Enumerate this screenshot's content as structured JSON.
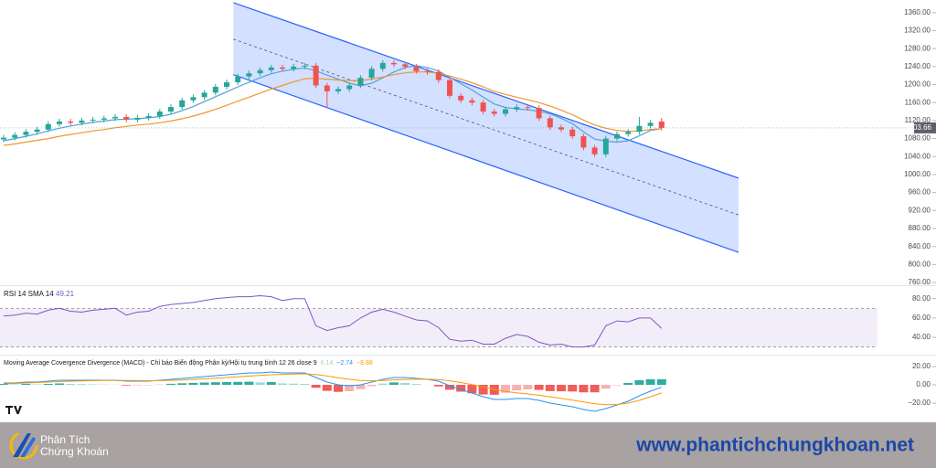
{
  "chart_data": [
    {
      "type": "candlestick",
      "open": [
        1078,
        1082,
        1088,
        1095,
        1100,
        1112,
        1118,
        1115,
        1120,
        1122,
        1125,
        1128,
        1122,
        1126,
        1130,
        1140,
        1150,
        1165,
        1172,
        1182,
        1195,
        1205,
        1218,
        1225,
        1232,
        1238,
        1235,
        1240,
        1242,
        1198,
        1185,
        1190,
        1198,
        1215,
        1235,
        1248,
        1245,
        1240,
        1230,
        1228,
        1210,
        1175,
        1165,
        1160,
        1140,
        1135,
        1145,
        1150,
        1148,
        1125,
        1105,
        1100,
        1085,
        1060,
        1045,
        1080,
        1090,
        1095,
        1108,
        1118
      ],
      "high": [
        1088,
        1094,
        1101,
        1106,
        1118,
        1124,
        1124,
        1126,
        1128,
        1131,
        1134,
        1134,
        1132,
        1136,
        1146,
        1156,
        1171,
        1178,
        1188,
        1201,
        1211,
        1224,
        1231,
        1238,
        1244,
        1244,
        1246,
        1248,
        1248,
        1204,
        1196,
        1204,
        1221,
        1241,
        1254,
        1254,
        1251,
        1246,
        1236,
        1234,
        1216,
        1181,
        1171,
        1166,
        1146,
        1151,
        1156,
        1156,
        1154,
        1131,
        1111,
        1106,
        1091,
        1066,
        1086,
        1096,
        1101,
        1128,
        1121,
        1126
      ],
      "low": [
        1072,
        1076,
        1082,
        1089,
        1094,
        1106,
        1109,
        1109,
        1114,
        1116,
        1119,
        1116,
        1116,
        1120,
        1124,
        1134,
        1144,
        1159,
        1166,
        1176,
        1189,
        1199,
        1212,
        1219,
        1226,
        1229,
        1229,
        1234,
        1192,
        1150,
        1179,
        1184,
        1192,
        1209,
        1229,
        1239,
        1234,
        1224,
        1222,
        1204,
        1169,
        1159,
        1154,
        1134,
        1129,
        1129,
        1139,
        1142,
        1119,
        1099,
        1094,
        1079,
        1054,
        1039,
        1039,
        1074,
        1084,
        1089,
        1102,
        1098
      ],
      "close": [
        1082,
        1088,
        1095,
        1100,
        1112,
        1118,
        1115,
        1120,
        1122,
        1125,
        1128,
        1122,
        1126,
        1130,
        1140,
        1150,
        1165,
        1172,
        1182,
        1195,
        1205,
        1218,
        1225,
        1232,
        1238,
        1235,
        1240,
        1242,
        1198,
        1185,
        1190,
        1198,
        1215,
        1235,
        1248,
        1245,
        1240,
        1230,
        1228,
        1210,
        1175,
        1165,
        1160,
        1140,
        1135,
        1145,
        1150,
        1148,
        1125,
        1105,
        1100,
        1085,
        1060,
        1045,
        1080,
        1090,
        1095,
        1108,
        1115,
        1103.66
      ],
      "up_color": "#26a69a",
      "down_color": "#ef5350",
      "overlays": [
        {
          "color": "#4fa3d9",
          "values": [
            1075,
            1080,
            1085,
            1090,
            1097,
            1103,
            1108,
            1112,
            1116,
            1119,
            1122,
            1123,
            1124,
            1126,
            1129,
            1134,
            1142,
            1151,
            1162,
            1173,
            1184,
            1195,
            1205,
            1215,
            1224,
            1230,
            1234,
            1237,
            1231,
            1221,
            1212,
            1203,
            1197,
            1203,
            1215,
            1228,
            1238,
            1242,
            1238,
            1230,
            1216,
            1202,
            1188,
            1172,
            1157,
            1149,
            1146,
            1144,
            1141,
            1135,
            1125,
            1113,
            1095,
            1079,
            1074,
            1072,
            1075,
            1086,
            1098,
            1102
          ]
        },
        {
          "color": "#f0962e",
          "values": [
            1065,
            1068,
            1072,
            1076,
            1080,
            1085,
            1089,
            1093,
            1097,
            1100,
            1104,
            1107,
            1110,
            1112,
            1115,
            1119,
            1124,
            1130,
            1137,
            1145,
            1154,
            1163,
            1172,
            1181,
            1190,
            1198,
            1206,
            1213,
            1214,
            1212,
            1210,
            1209,
            1209,
            1212,
            1217,
            1222,
            1226,
            1228,
            1228,
            1225,
            1219,
            1212,
            1204,
            1195,
            1185,
            1178,
            1172,
            1166,
            1160,
            1152,
            1143,
            1133,
            1121,
            1110,
            1103,
            1098,
            1096,
            1097,
            1100,
            1102
          ]
        }
      ],
      "channel": {
        "start_index": 20.6,
        "end_index": 65.9,
        "upper": [
          1382,
          992
        ],
        "middle": [
          1301,
          910
        ],
        "lower": [
          1222,
          827
        ],
        "color": "#2962ff"
      },
      "last_price": 1103.66,
      "ylim": [
        754,
        1388
      ],
      "yticks": [
        {
          "value": 1360,
          "label": "1360.00"
        },
        {
          "value": 1320,
          "label": "1320.00"
        },
        {
          "value": 1280,
          "label": "1280.00"
        },
        {
          "value": 1240,
          "label": "1240.00"
        },
        {
          "value": 1200,
          "label": "1200.00"
        },
        {
          "value": 1160,
          "label": "1160.00"
        },
        {
          "value": 1120,
          "label": "1120.00"
        },
        {
          "value": 1080,
          "label": "1080.00"
        },
        {
          "value": 1040,
          "label": "1040.00"
        },
        {
          "value": 1000,
          "label": "1000.00"
        },
        {
          "value": 960,
          "label": "960.00"
        },
        {
          "value": 920,
          "label": "920.00"
        },
        {
          "value": 880,
          "label": "880.00"
        },
        {
          "value": 840,
          "label": "840.00"
        },
        {
          "value": 800,
          "label": "800.00"
        },
        {
          "value": 760,
          "label": "760.00"
        }
      ]
    },
    {
      "type": "line",
      "title": "RSI 14 SMA 14",
      "current": 49.21,
      "color": "#7e57c2",
      "values": [
        62,
        63,
        65,
        64,
        68,
        70,
        67,
        66,
        68,
        69,
        70,
        63,
        66,
        67,
        72,
        74,
        75,
        76,
        78,
        80,
        81,
        82,
        82,
        83,
        82,
        78,
        80,
        80,
        52,
        47,
        50,
        52,
        60,
        66,
        69,
        66,
        62,
        58,
        57,
        50,
        38,
        36,
        37,
        33,
        33,
        39,
        43,
        41,
        35,
        32,
        33,
        30,
        30,
        32,
        52,
        57,
        56,
        60,
        60,
        49.21
      ],
      "band": [
        30,
        70
      ],
      "ylim": [
        24,
        92
      ],
      "yticks": [
        {
          "value": 80,
          "label": "80.00"
        },
        {
          "value": 60,
          "label": "60.00"
        },
        {
          "value": 40,
          "label": "40.00"
        }
      ]
    },
    {
      "type": "macd",
      "title": "Moving Average Covergence Divergence (MACD) - Chỉ báo Biến động Phân kỳ/Hội tụ trung bình 12 26 close 9",
      "legend_values": [
        6.14,
        -2.74,
        -8.88
      ],
      "legend_value_labels": [
        "6.14",
        "−2.74",
        "−8.88"
      ],
      "legend_colors": [
        "#a5d6a7",
        "#2196f3",
        "#ff9800"
      ],
      "histogram": [
        1,
        0.5,
        1,
        0.5,
        1,
        1.5,
        1,
        0.8,
        0.5,
        0.3,
        0.2,
        -0.7,
        -0.6,
        -0.5,
        0.4,
        1.1,
        1.7,
        2.1,
        2.5,
        2.8,
        3,
        3.2,
        3.4,
        2.7,
        3,
        1.6,
        1.3,
        1,
        -3.2,
        -6.6,
        -7.7,
        -7,
        -4.8,
        -1.4,
        1.3,
        2.6,
        2.1,
        0.9,
        -0.1,
        -1.7,
        -5.4,
        -7.5,
        -9.2,
        -10.6,
        -10.9,
        -8.7,
        -6.2,
        -5,
        -5.6,
        -6.9,
        -7.1,
        -7.3,
        -8.2,
        -8.2,
        -4.2,
        -0.5,
        2,
        5,
        6,
        6.14
      ],
      "macd": [
        2,
        2,
        3,
        3,
        4,
        5,
        5,
        5,
        5,
        5,
        5,
        4,
        4,
        4,
        5,
        6,
        7,
        8,
        9,
        10,
        11,
        12,
        13,
        13,
        14,
        13,
        13,
        13,
        8,
        3,
        0,
        -1,
        0,
        3,
        6,
        8,
        8,
        7,
        6,
        4,
        -1,
        -5,
        -9,
        -13,
        -16,
        -16,
        -15,
        -15,
        -17,
        -20,
        -22,
        -24,
        -27,
        -29,
        -26,
        -22,
        -18,
        -12,
        -7,
        -2.74
      ],
      "signal": [
        1,
        1.5,
        2,
        2.5,
        3,
        3.5,
        4,
        4.2,
        4.5,
        4.7,
        4.8,
        4.7,
        4.6,
        4.5,
        4.6,
        4.9,
        5.3,
        5.9,
        6.5,
        7.2,
        8,
        8.8,
        9.6,
        10.3,
        11,
        11.4,
        11.7,
        12,
        11.2,
        9.6,
        7.7,
        6,
        4.8,
        4.4,
        4.7,
        5.4,
        5.9,
        6.1,
        6.1,
        5.7,
        4.4,
        2.5,
        0.2,
        -2.4,
        -5.1,
        -7.3,
        -8.8,
        -10,
        -11.4,
        -13.1,
        -14.9,
        -16.7,
        -18.8,
        -20.8,
        -21.8,
        -21.5,
        -20,
        -17,
        -13,
        -8.88
      ],
      "macd_color": "#2196f3",
      "signal_color": "#ff9800",
      "up_color": "#26a69a",
      "down_color": "#ef5350",
      "ylim": [
        -37,
        31
      ],
      "yticks": [
        {
          "value": 20,
          "label": "20.00"
        },
        {
          "value": 0,
          "label": "0.00"
        },
        {
          "value": -20,
          "label": "−20.00"
        }
      ]
    }
  ],
  "footer": {
    "brand": [
      "Phân Tích",
      "Chứng Khoán"
    ],
    "website": "www.phantichchungkhoan.net"
  }
}
